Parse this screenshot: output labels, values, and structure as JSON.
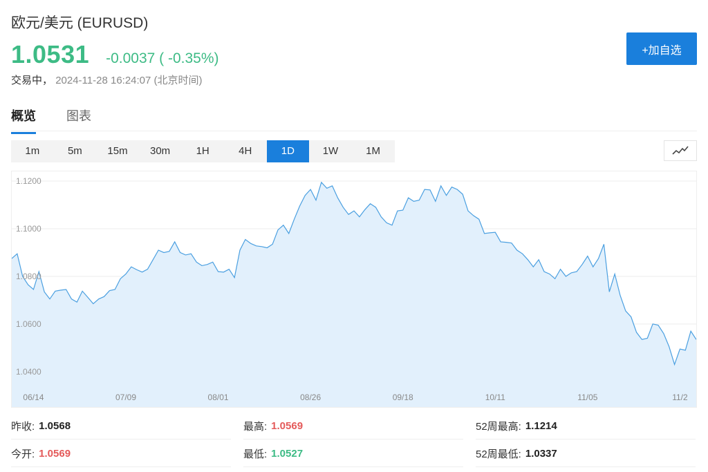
{
  "header": {
    "title": "欧元/美元 (EURUSD)",
    "price": "1.0531",
    "change": "-0.0037 ( -0.35%)",
    "status_label": "交易中，",
    "timestamp": "2024-11-28 16:24:07",
    "timezone": "(北京时间)",
    "add_watchlist_label": "+加自选",
    "accent_color": "#1a7fdc",
    "down_color": "#3dbb85",
    "up_color": "#e45a5a"
  },
  "tabs": [
    {
      "label": "概览",
      "active": true
    },
    {
      "label": "图表",
      "active": false
    }
  ],
  "ranges": [
    {
      "label": "1m",
      "active": false
    },
    {
      "label": "5m",
      "active": false
    },
    {
      "label": "15m",
      "active": false
    },
    {
      "label": "30m",
      "active": false
    },
    {
      "label": "1H",
      "active": false
    },
    {
      "label": "4H",
      "active": false
    },
    {
      "label": "1D",
      "active": true
    },
    {
      "label": "1W",
      "active": false
    },
    {
      "label": "1M",
      "active": false
    }
  ],
  "chart_type_icon": "line-chart-icon",
  "chart_data": {
    "type": "area",
    "title": "",
    "xlabel": "",
    "ylabel": "",
    "ylim": [
      1.035,
      1.1235
    ],
    "y_ticks": [
      {
        "value": 1.12,
        "label": "1.1200"
      },
      {
        "value": 1.1,
        "label": "1.1000"
      },
      {
        "value": 1.08,
        "label": "1.0800"
      },
      {
        "value": 1.06,
        "label": "1.0600"
      },
      {
        "value": 1.04,
        "label": "1.0400"
      }
    ],
    "x_ticks": [
      {
        "index": 4,
        "label": "06/14"
      },
      {
        "index": 21,
        "label": "07/09"
      },
      {
        "index": 38,
        "label": "08/01"
      },
      {
        "index": 55,
        "label": "08/26"
      },
      {
        "index": 72,
        "label": "09/18"
      },
      {
        "index": 89,
        "label": "10/11"
      },
      {
        "index": 106,
        "label": "11/05"
      },
      {
        "index": 123,
        "label": "11/2"
      }
    ],
    "grid": true,
    "line_color": "#4a9fe0",
    "fill_color": "#e2f0fc",
    "values": [
      1.0875,
      1.0895,
      1.08,
      1.0765,
      1.0745,
      1.082,
      1.0735,
      1.0705,
      1.0738,
      1.0742,
      1.0745,
      1.0705,
      1.0692,
      1.0738,
      1.0712,
      1.0685,
      1.0705,
      1.0715,
      1.074,
      1.0745,
      1.079,
      1.081,
      1.084,
      1.0828,
      1.0818,
      1.083,
      1.087,
      1.091,
      1.09,
      1.0905,
      1.0945,
      1.09,
      1.089,
      1.0895,
      1.086,
      1.0845,
      1.085,
      1.086,
      1.082,
      1.0818,
      1.083,
      1.0795,
      1.091,
      1.0955,
      1.0938,
      1.0928,
      1.0925,
      1.092,
      1.0935,
      1.0995,
      1.1015,
      1.098,
      1.104,
      1.1095,
      1.114,
      1.1165,
      1.112,
      1.1195,
      1.117,
      1.118,
      1.113,
      1.109,
      1.106,
      1.1075,
      1.105,
      1.108,
      1.1105,
      1.109,
      1.105,
      1.1025,
      1.1015,
      1.1075,
      1.1078,
      1.113,
      1.1115,
      1.112,
      1.1165,
      1.1163,
      1.1115,
      1.118,
      1.114,
      1.1175,
      1.1165,
      1.1145,
      1.1075,
      1.1055,
      1.104,
      1.098,
      1.0983,
      1.0985,
      1.0945,
      1.0943,
      1.094,
      1.091,
      1.0895,
      1.087,
      1.084,
      1.087,
      1.082,
      1.081,
      1.079,
      1.083,
      1.08,
      1.0815,
      1.082,
      1.085,
      1.0885,
      1.084,
      1.0875,
      1.0935,
      1.0735,
      1.081,
      1.072,
      1.0655,
      1.063,
      1.0565,
      1.0535,
      1.054,
      1.06,
      1.0595,
      1.056,
      1.0505,
      1.043,
      1.0495,
      1.049,
      1.057,
      1.0535
    ]
  },
  "stats": [
    {
      "label": "昨收:",
      "value": "1.0568",
      "tone": "neutral"
    },
    {
      "label": "最高:",
      "value": "1.0569",
      "tone": "up"
    },
    {
      "label": "52周最高:",
      "value": "1.1214",
      "tone": "neutral"
    },
    {
      "label": "今开:",
      "value": "1.0569",
      "tone": "up"
    },
    {
      "label": "最低:",
      "value": "1.0527",
      "tone": "down"
    },
    {
      "label": "52周最低:",
      "value": "1.0337",
      "tone": "neutral"
    }
  ]
}
